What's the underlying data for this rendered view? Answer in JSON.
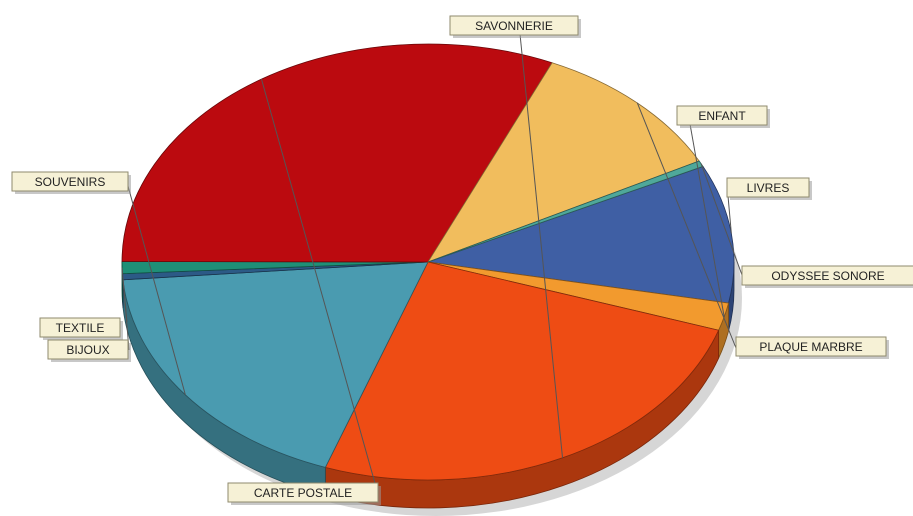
{
  "chart_data": {
    "type": "pie",
    "style": "3d",
    "title": "",
    "slices": [
      {
        "label": "LIVRES",
        "value": 11.5,
        "color": "#3f5fa4"
      },
      {
        "label": "ENFANT",
        "value": 2.3,
        "color": "#f29a2e"
      },
      {
        "label": "SAVONNERIE",
        "value": 28.5,
        "color": "#ee4c14"
      },
      {
        "label": "SOUVENIRS",
        "value": 20.5,
        "color": "#4a9bb0"
      },
      {
        "label": "TEXTILE",
        "value": 0.5,
        "color": "#2c5a86"
      },
      {
        "label": "BIJOUX",
        "value": 1.0,
        "color": "#1f8f77"
      },
      {
        "label": "CARTE POSTALE",
        "value": 35.5,
        "color": "#bb0a0f"
      },
      {
        "label": "PLAQUE MARBRE",
        "value": 12.0,
        "color": "#f1bd5d"
      },
      {
        "label": "ODYSSEE SONORE",
        "value": 0.5,
        "color": "#4fa89a"
      }
    ]
  }
}
